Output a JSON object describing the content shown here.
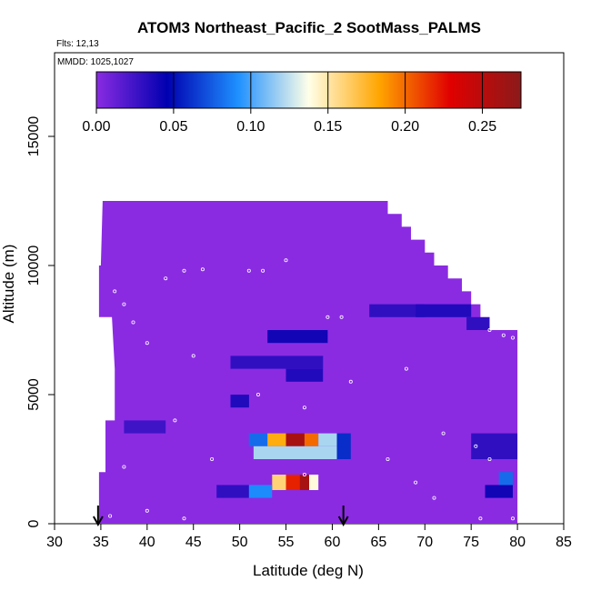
{
  "title": "ATOM3 Northeast_Pacific_2 SootMass_PALMS",
  "flights_label": "Flts: 12,13",
  "mmdd_label": "MMDD: 1025,1027",
  "chart_data": {
    "type": "heatmap",
    "title": "ATOM3 Northeast_Pacific_2 SootMass_PALMS",
    "xlabel": "Latitude (deg N)",
    "ylabel": "Altitude (m)",
    "xlim": [
      30,
      85
    ],
    "ylim": [
      0,
      17500
    ],
    "x_ticks": [
      30,
      35,
      40,
      45,
      50,
      55,
      60,
      65,
      70,
      75,
      80,
      85
    ],
    "y_ticks": [
      0,
      5000,
      10000,
      15000
    ],
    "colorbar": {
      "range": [
        0.0,
        0.275
      ],
      "ticks": [
        "0.00",
        "0.05",
        "0.10",
        "0.15",
        "0.20",
        "0.25"
      ],
      "colors": [
        "#8a2be2",
        "#0000b0",
        "#1e90ff",
        "#ffffe8",
        "#ffa500",
        "#e00000",
        "#8b1a1a"
      ]
    },
    "background_value": 0.0,
    "domain_outline": [
      [
        34.8,
        0
      ],
      [
        34.8,
        2000
      ],
      [
        35.5,
        2000
      ],
      [
        35.5,
        4000
      ],
      [
        36.5,
        4000
      ],
      [
        36.5,
        6000
      ],
      [
        36.2,
        8000
      ],
      [
        34.8,
        8000
      ],
      [
        34.8,
        10000
      ],
      [
        35.0,
        10000
      ],
      [
        35.2,
        12500
      ],
      [
        66.0,
        12500
      ],
      [
        66.0,
        12000
      ],
      [
        67.5,
        12000
      ],
      [
        67.5,
        11500
      ],
      [
        68.5,
        11500
      ],
      [
        68.5,
        11000
      ],
      [
        70.0,
        11000
      ],
      [
        70.0,
        10500
      ],
      [
        71.0,
        10500
      ],
      [
        71.0,
        10000
      ],
      [
        72.5,
        10000
      ],
      [
        72.5,
        9500
      ],
      [
        74.0,
        9500
      ],
      [
        74.0,
        9000
      ],
      [
        75.0,
        9000
      ],
      [
        75.0,
        8500
      ],
      [
        76.0,
        8500
      ],
      [
        76.0,
        8000
      ],
      [
        77.0,
        8000
      ],
      [
        77.0,
        7500
      ],
      [
        80.0,
        7500
      ],
      [
        80.0,
        0
      ]
    ],
    "values": [
      {
        "lat": [
          53.5,
          55.5
        ],
        "alt": [
          1300,
          1900
        ],
        "value": 0.16
      },
      {
        "lat": [
          55.0,
          56.5
        ],
        "alt": [
          1300,
          1900
        ],
        "value": 0.22
      },
      {
        "lat": [
          56.5,
          57.5
        ],
        "alt": [
          1300,
          1900
        ],
        "value": 0.26
      },
      {
        "lat": [
          57.5,
          58.5
        ],
        "alt": [
          1300,
          1900
        ],
        "value": 0.14
      },
      {
        "lat": [
          50.0,
          53.5
        ],
        "alt": [
          1000,
          1500
        ],
        "value": 0.09
      },
      {
        "lat": [
          47.5,
          51.0
        ],
        "alt": [
          1000,
          1500
        ],
        "value": 0.03
      },
      {
        "lat": [
          51.0,
          53.0
        ],
        "alt": [
          3000,
          3500
        ],
        "value": 0.08
      },
      {
        "lat": [
          53.0,
          55.0
        ],
        "alt": [
          3000,
          3500
        ],
        "value": 0.18
      },
      {
        "lat": [
          55.0,
          57.0
        ],
        "alt": [
          3000,
          3500
        ],
        "value": 0.26
      },
      {
        "lat": [
          57.0,
          58.5
        ],
        "alt": [
          3000,
          3500
        ],
        "value": 0.2
      },
      {
        "lat": [
          58.5,
          60.5
        ],
        "alt": [
          3000,
          3500
        ],
        "value": 0.12
      },
      {
        "lat": [
          51.5,
          60.5
        ],
        "alt": [
          2500,
          3000
        ],
        "value": 0.12
      },
      {
        "lat": [
          60.5,
          62.0
        ],
        "alt": [
          2500,
          3500
        ],
        "value": 0.06
      },
      {
        "lat": [
          76.5,
          79.5
        ],
        "alt": [
          1000,
          1500
        ],
        "value": 0.04
      },
      {
        "lat": [
          78.0,
          79.5
        ],
        "alt": [
          1500,
          2000
        ],
        "value": 0.08
      },
      {
        "lat": [
          53.0,
          59.5
        ],
        "alt": [
          7000,
          7500
        ],
        "value": 0.04
      },
      {
        "lat": [
          55.0,
          59.0
        ],
        "alt": [
          5500,
          6000
        ],
        "value": 0.035
      },
      {
        "lat": [
          49.0,
          59.0
        ],
        "alt": [
          6000,
          6500
        ],
        "value": 0.03
      },
      {
        "lat": [
          64.0,
          70.0
        ],
        "alt": [
          8000,
          8500
        ],
        "value": 0.03
      },
      {
        "lat": [
          69.0,
          75.0
        ],
        "alt": [
          8000,
          8500
        ],
        "value": 0.035
      },
      {
        "lat": [
          49.0,
          51.0
        ],
        "alt": [
          4500,
          5000
        ],
        "value": 0.035
      },
      {
        "lat": [
          74.5,
          78.5
        ],
        "alt": [
          7500,
          8000
        ],
        "value": 0.03
      },
      {
        "lat": [
          75.0,
          80.0
        ],
        "alt": [
          2500,
          3500
        ],
        "value": 0.03
      },
      {
        "lat": [
          37.5,
          42.0
        ],
        "alt": [
          3500,
          4000
        ],
        "value": 0.025
      }
    ],
    "flight_track_points": [
      [
        39.5,
        12600
      ],
      [
        41.5,
        12700
      ],
      [
        67.0,
        12200
      ],
      [
        68.0,
        12100
      ],
      [
        69.0,
        11800
      ],
      [
        44.0,
        9800
      ],
      [
        46.0,
        9850
      ],
      [
        51.0,
        9800
      ],
      [
        52.5,
        9800
      ],
      [
        55.0,
        10200
      ],
      [
        42.0,
        9500
      ],
      [
        36.5,
        9000
      ],
      [
        37.5,
        8500
      ],
      [
        38.5,
        7800
      ],
      [
        59.5,
        8000
      ],
      [
        61.0,
        8000
      ],
      [
        77.0,
        7500
      ],
      [
        78.5,
        7300
      ],
      [
        79.5,
        7200
      ],
      [
        40.0,
        7000
      ],
      [
        45.0,
        6500
      ],
      [
        52.0,
        5000
      ],
      [
        57.0,
        4500
      ],
      [
        62.0,
        5500
      ],
      [
        68.0,
        6000
      ],
      [
        72.0,
        3500
      ],
      [
        75.5,
        3000
      ],
      [
        77.0,
        2500
      ],
      [
        43.0,
        4000
      ],
      [
        47.0,
        2500
      ],
      [
        40.0,
        500
      ],
      [
        44.0,
        200
      ],
      [
        57.0,
        1900
      ],
      [
        66.0,
        2500
      ],
      [
        69.0,
        1600
      ],
      [
        71.0,
        1000
      ],
      [
        76.0,
        200
      ],
      [
        79.5,
        200
      ],
      [
        36.0,
        300
      ],
      [
        37.5,
        2200
      ]
    ],
    "markers": [
      {
        "x": 34.7,
        "label": "arrow"
      },
      {
        "x": 61.2,
        "label": "arrow"
      }
    ]
  }
}
